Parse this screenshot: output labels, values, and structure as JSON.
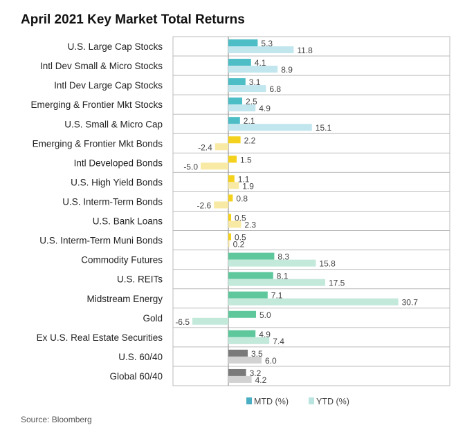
{
  "chart_data": {
    "type": "bar",
    "orientation": "horizontal",
    "title": "April 2021 Key Market Total Returns",
    "source": "Source: Bloomberg",
    "xlabel": "",
    "ylabel": "",
    "xlim": [
      -10,
      40
    ],
    "legend": {
      "position": "bottom",
      "entries": [
        "MTD (%)",
        "YTD (%)"
      ]
    },
    "categories": [
      "U.S. Large Cap Stocks",
      "Intl Dev Small & Micro Stocks",
      "Intl Dev Large Cap Stocks",
      "Emerging & Frontier Mkt Stocks",
      "U.S. Small & Micro Cap",
      "Emerging & Frontier Mkt Bonds",
      "Intl Developed Bonds",
      "U.S. High Yield Bonds",
      "U.S. Interm-Term Bonds",
      "U.S. Bank Loans",
      "U.S. Interm-Term Muni Bonds",
      "Commodity Futures",
      "U.S. REITs",
      "Midstream Energy",
      "Gold",
      "Ex U.S. Real Estate Securities",
      "U.S. 60/40",
      "Global 60/40"
    ],
    "groups": [
      "equity",
      "equity",
      "equity",
      "equity",
      "equity",
      "bond",
      "bond",
      "bond",
      "bond",
      "bond",
      "bond",
      "real",
      "real",
      "real",
      "real",
      "real",
      "balanced",
      "balanced"
    ],
    "series": [
      {
        "name": "MTD (%)",
        "values": [
          5.3,
          4.1,
          3.1,
          2.5,
          2.1,
          2.2,
          1.5,
          1.1,
          0.8,
          0.5,
          0.5,
          8.3,
          8.1,
          7.1,
          5.0,
          4.9,
          3.5,
          3.2
        ]
      },
      {
        "name": "YTD (%)",
        "values": [
          11.8,
          8.9,
          6.8,
          4.9,
          15.1,
          -2.4,
          -5.0,
          1.9,
          -2.6,
          2.3,
          0.2,
          15.8,
          17.5,
          30.7,
          -6.5,
          7.4,
          6.0,
          4.2
        ]
      }
    ],
    "colors": {
      "equity": [
        "#4dbdc6",
        "#c2e6ee"
      ],
      "bond": [
        "#f4d11c",
        "#f8eaa4"
      ],
      "real": [
        "#5ec79c",
        "#c3e9db"
      ],
      "balanced": [
        "#7a7a7a",
        "#d2d2d2"
      ],
      "legend": [
        "#4aaec4",
        "#b9e4e0"
      ]
    }
  }
}
